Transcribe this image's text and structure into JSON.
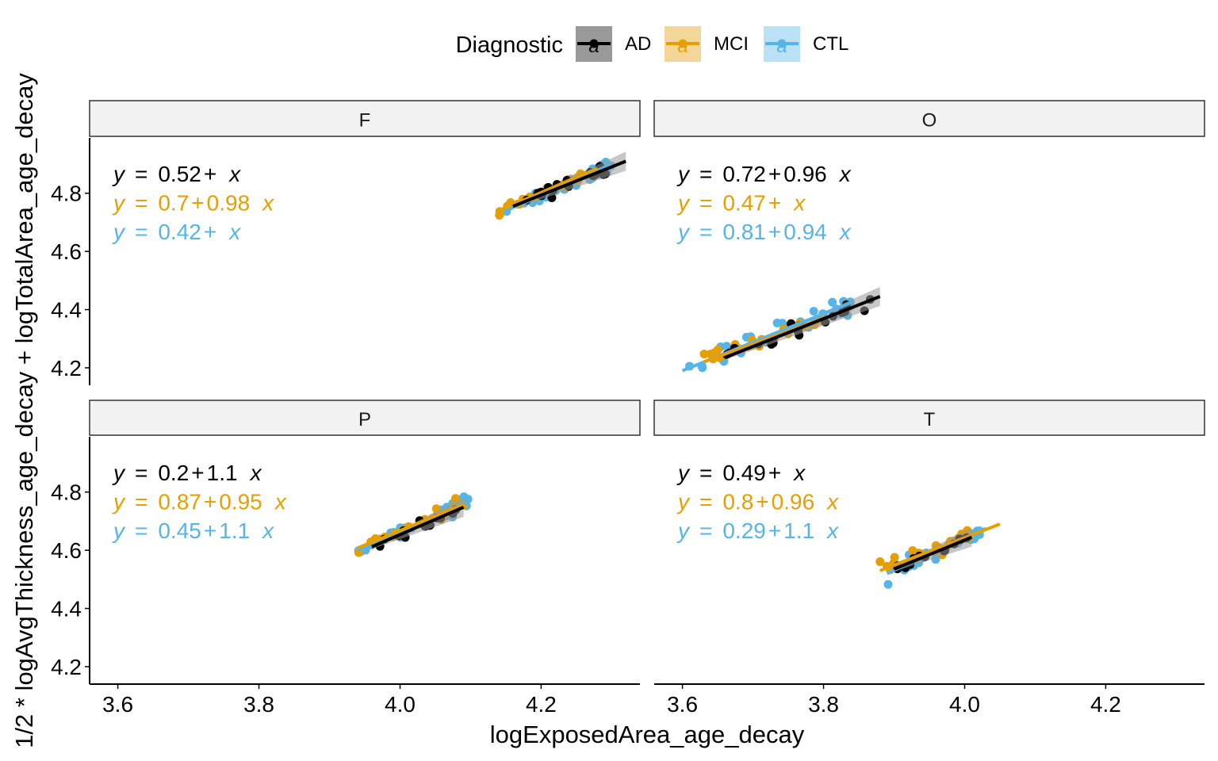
{
  "chart_data": {
    "type": "scatter",
    "xlabel": "logExposedArea_age_decay",
    "ylabel": "1/2 * logAvgThickness_age_decay + logTotalArea_age_decay",
    "xlim": [
      3.56,
      4.34
    ],
    "ylim": [
      4.14,
      4.99
    ],
    "x_ticks": [
      "3.6",
      "3.8",
      "4.0",
      "4.2"
    ],
    "y_ticks": [
      "4.2",
      "4.4",
      "4.6",
      "4.8"
    ],
    "legend": {
      "title": "Diagnostic",
      "placement": "top",
      "entries": [
        {
          "name": "AD",
          "color": "#000000",
          "band": "#999999",
          "glyph": "a"
        },
        {
          "name": "MCI",
          "color": "#E69F00",
          "band": "#F5D699",
          "glyph": "a"
        },
        {
          "name": "CTL",
          "color": "#56B4E9",
          "band": "#BBE1F6",
          "glyph": "a"
        }
      ]
    },
    "colors": {
      "AD": "#000000",
      "MCI": "#E69F00",
      "CTL": "#56B4E9"
    },
    "grid": false,
    "panels": [
      {
        "label": "F",
        "equations": [
          {
            "group": "AD",
            "parts": [
              "y",
              "=",
              "0.52",
              "+",
              "x"
            ]
          },
          {
            "group": "MCI",
            "parts": [
              "y",
              "=",
              "0.7",
              "+",
              "0.98",
              "x"
            ]
          },
          {
            "group": "CTL",
            "parts": [
              "y",
              "=",
              "0.42",
              "+",
              "x"
            ]
          }
        ],
        "series": [
          {
            "name": "AD",
            "x_range": [
              4.16,
              4.32
            ],
            "y_range": [
              4.755,
              4.91
            ],
            "cloud": {
              "x": 4.23,
              "y": 4.83,
              "n": 16,
              "spread": 0.04
            }
          },
          {
            "name": "MCI",
            "x_range": [
              4.14,
              4.28
            ],
            "y_range": [
              4.74,
              4.885
            ],
            "cloud": {
              "x": 4.2,
              "y": 4.805,
              "n": 20,
              "spread": 0.04
            }
          },
          {
            "name": "CTL",
            "x_range": [
              4.15,
              4.3
            ],
            "y_range": [
              4.74,
              4.9
            ],
            "cloud": {
              "x": 4.22,
              "y": 4.825,
              "n": 30,
              "spread": 0.05
            }
          }
        ]
      },
      {
        "label": "O",
        "equations": [
          {
            "group": "AD",
            "parts": [
              "y",
              "=",
              "0.72",
              "+",
              "0.96",
              "x"
            ]
          },
          {
            "group": "MCI",
            "parts": [
              "y",
              "=",
              "0.47",
              "+",
              "x"
            ]
          },
          {
            "group": "CTL",
            "parts": [
              "y",
              "=",
              "0.81",
              "+",
              "0.94",
              "x"
            ]
          }
        ],
        "series": [
          {
            "name": "AD",
            "x_range": [
              3.66,
              3.88
            ],
            "y_range": [
              4.235,
              4.445
            ],
            "cloud": {
              "x": 3.73,
              "y": 4.3,
              "n": 18,
              "spread": 0.05
            }
          },
          {
            "name": "MCI",
            "x_range": [
              3.63,
              3.8
            ],
            "y_range": [
              4.22,
              4.37
            ],
            "cloud": {
              "x": 3.7,
              "y": 4.29,
              "n": 22,
              "spread": 0.05
            }
          },
          {
            "name": "CTL",
            "x_range": [
              3.6,
              3.84
            ],
            "y_range": [
              4.19,
              4.425
            ],
            "cloud": {
              "x": 3.71,
              "y": 4.3,
              "n": 38,
              "spread": 0.07
            }
          }
        ]
      },
      {
        "label": "P",
        "equations": [
          {
            "group": "AD",
            "parts": [
              "y",
              "=",
              "0.2",
              "+",
              "1.1",
              "x"
            ]
          },
          {
            "group": "MCI",
            "parts": [
              "y",
              "=",
              "0.87",
              "+",
              "0.95",
              "x"
            ]
          },
          {
            "group": "CTL",
            "parts": [
              "y",
              "=",
              "0.45",
              "+",
              "1.1",
              "x"
            ]
          }
        ],
        "series": [
          {
            "name": "AD",
            "x_range": [
              3.96,
              4.09
            ],
            "y_range": [
              4.612,
              4.748
            ],
            "cloud": {
              "x": 4.01,
              "y": 4.66,
              "n": 14,
              "spread": 0.04
            }
          },
          {
            "name": "MCI",
            "x_range": [
              3.94,
              4.09
            ],
            "y_range": [
              4.608,
              4.757
            ],
            "cloud": {
              "x": 4.0,
              "y": 4.67,
              "n": 22,
              "spread": 0.045
            }
          },
          {
            "name": "CTL",
            "x_range": [
              3.94,
              4.1
            ],
            "y_range": [
              4.6,
              4.77
            ],
            "cloud": {
              "x": 4.02,
              "y": 4.68,
              "n": 34,
              "spread": 0.05
            }
          }
        ]
      },
      {
        "label": "T",
        "equations": [
          {
            "group": "AD",
            "parts": [
              "y",
              "=",
              "0.49",
              "+",
              "x"
            ]
          },
          {
            "group": "MCI",
            "parts": [
              "y",
              "=",
              "0.8",
              "+",
              "0.96",
              "x"
            ]
          },
          {
            "group": "CTL",
            "parts": [
              "y",
              "=",
              "0.29",
              "+",
              "1.1",
              "x"
            ]
          }
        ],
        "series": [
          {
            "name": "AD",
            "x_range": [
              3.9,
              4.01
            ],
            "y_range": [
              4.535,
              4.645
            ],
            "cloud": {
              "x": 3.95,
              "y": 4.58,
              "n": 14,
              "spread": 0.035
            }
          },
          {
            "name": "MCI",
            "x_range": [
              3.88,
              4.05
            ],
            "y_range": [
              4.53,
              4.69
            ],
            "cloud": {
              "x": 3.97,
              "y": 4.6,
              "n": 22,
              "spread": 0.045
            }
          },
          {
            "name": "CTL",
            "x_range": [
              3.89,
              4.03
            ],
            "y_range": [
              4.52,
              4.675
            ],
            "cloud": {
              "x": 3.97,
              "y": 4.6,
              "n": 34,
              "spread": 0.045
            }
          }
        ]
      }
    ]
  }
}
